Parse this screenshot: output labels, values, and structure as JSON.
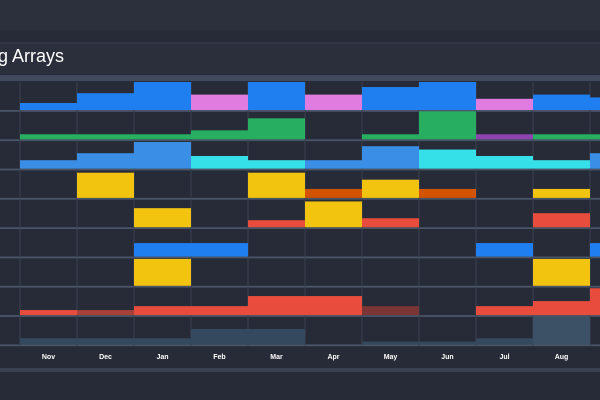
{
  "chart_data": {
    "type": "bar",
    "title": "g Arrays",
    "categories": [
      "Nov",
      "Dec",
      "Jan",
      "Feb",
      "Mar",
      "Apr",
      "May",
      "Jun",
      "Jul",
      "Aug",
      null
    ],
    "ylim": [
      0,
      100
    ],
    "series": [
      {
        "values": [
          25,
          60,
          100,
          55,
          100,
          55,
          82,
          100,
          40,
          55,
          45
        ],
        "colors": [
          "#1f7ff0",
          "#1f7ff0",
          "#1f7ff0",
          "#e07ce0",
          "#1f7ff0",
          "#e07ce0",
          "#1f7ff0",
          "#1f7ff0",
          "#e07ce0",
          "#1f7ff0",
          "#1f7ff0"
        ]
      },
      {
        "values": [
          18,
          18,
          18,
          32,
          75,
          0,
          18,
          100,
          18,
          18,
          18
        ],
        "colors": [
          "#27ae60",
          "#27ae60",
          "#27ae60",
          "#27ae60",
          "#27ae60",
          "#27ae60",
          "#27ae60",
          "#27ae60",
          "#8e44ad",
          "#27ae60",
          "#27ae60"
        ]
      },
      {
        "values": [
          30,
          55,
          95,
          45,
          30,
          30,
          80,
          68,
          45,
          30,
          55
        ],
        "colors": [
          "#3a8ee6",
          "#3a8ee6",
          "#3a8ee6",
          "#36e0e8",
          "#36e0e8",
          "#3a8ee6",
          "#3a8ee6",
          "#36e0e8",
          "#36e0e8",
          "#36e0e8",
          "#3a8ee6"
        ]
      },
      {
        "values": [
          0,
          90,
          0,
          0,
          90,
          32,
          65,
          32,
          0,
          32,
          0
        ],
        "colors": [
          "#f2c40f",
          "#f2c40f",
          "#f2c40f",
          "#f2c40f",
          "#f2c40f",
          "#d35400",
          "#f2c40f",
          "#d35400",
          "#f2c40f",
          "#f2c40f",
          "#f2c40f"
        ]
      },
      {
        "values": [
          0,
          0,
          68,
          0,
          25,
          92,
          32,
          0,
          0,
          50,
          0
        ],
        "colors": [
          "#e74c3c",
          "#e74c3c",
          "#f2c40f",
          "#e74c3c",
          "#e74c3c",
          "#f2c40f",
          "#e74c3c",
          "#e74c3c",
          "#e74c3c",
          "#e74c3c",
          "#e74c3c"
        ]
      },
      {
        "values": [
          0,
          0,
          48,
          48,
          0,
          0,
          0,
          0,
          48,
          0,
          48
        ],
        "colors": [
          "#1f7ff0",
          "#1f7ff0",
          "#1f7ff0",
          "#1f7ff0",
          "#1f7ff0",
          "#1f7ff0",
          "#1f7ff0",
          "#1f7ff0",
          "#1f7ff0",
          "#1f7ff0",
          "#1f7ff0"
        ]
      },
      {
        "values": [
          0,
          0,
          96,
          0,
          0,
          0,
          0,
          0,
          0,
          96,
          0
        ],
        "colors": [
          "#f2c40f",
          "#f2c40f",
          "#f2c40f",
          "#f2c40f",
          "#f2c40f",
          "#f2c40f",
          "#f2c40f",
          "#f2c40f",
          "#f2c40f",
          "#f2c40f",
          "#f2c40f"
        ]
      },
      {
        "values": [
          18,
          18,
          32,
          32,
          68,
          68,
          32,
          0,
          32,
          50,
          96
        ],
        "colors": [
          "#e74c3c",
          "#a8403a",
          "#e74c3c",
          "#e74c3c",
          "#e74c3c",
          "#e74c3c",
          "#7b3535",
          "#e74c3c",
          "#e74c3c",
          "#e74c3c",
          "#e74c3c"
        ]
      },
      {
        "values": [
          22,
          22,
          22,
          55,
          55,
          0,
          10,
          10,
          22,
          100,
          0
        ],
        "colors": [
          "#34495e",
          "#34495e",
          "#34495e",
          "#34495e",
          "#34495e",
          "#34495e",
          "#34495e",
          "#34495e",
          "#34495e",
          "#3d5166",
          "#34495e"
        ]
      }
    ]
  }
}
